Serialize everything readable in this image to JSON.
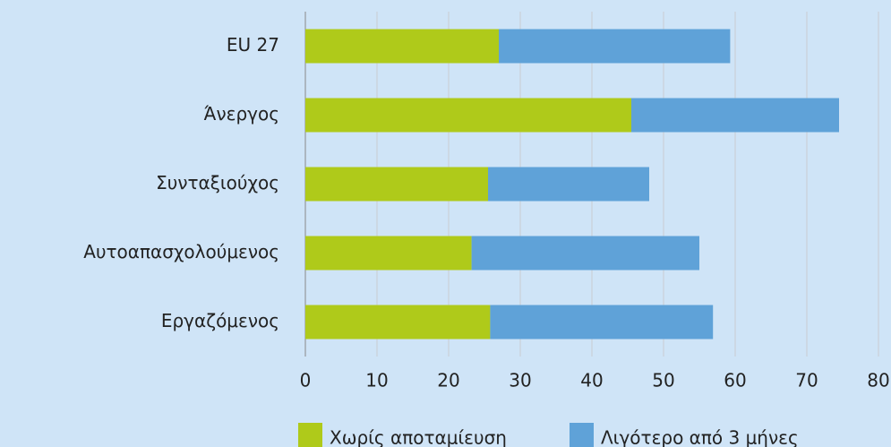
{
  "chart_data": {
    "type": "bar",
    "orientation": "horizontal",
    "stacked": true,
    "categories": [
      "EU 27",
      "Άνεργος",
      "Συνταξιούχος",
      "Αυτοαπασχολούμενος",
      "Εργαζόμενος"
    ],
    "series": [
      {
        "name": "Χωρίς αποταμίευση",
        "color": "#afca1a",
        "values": [
          27,
          45.5,
          25.5,
          23.2,
          25.8
        ]
      },
      {
        "name": "Λιγότερο από 3 μήνες",
        "color": "#5fa2d8",
        "values": [
          32.3,
          29,
          22.5,
          31.8,
          31.1
        ]
      }
    ],
    "xlim": [
      0,
      80
    ],
    "xticks": [
      0,
      10,
      20,
      30,
      40,
      50,
      60,
      70,
      80
    ],
    "grid": true,
    "legend": "bottom"
  }
}
